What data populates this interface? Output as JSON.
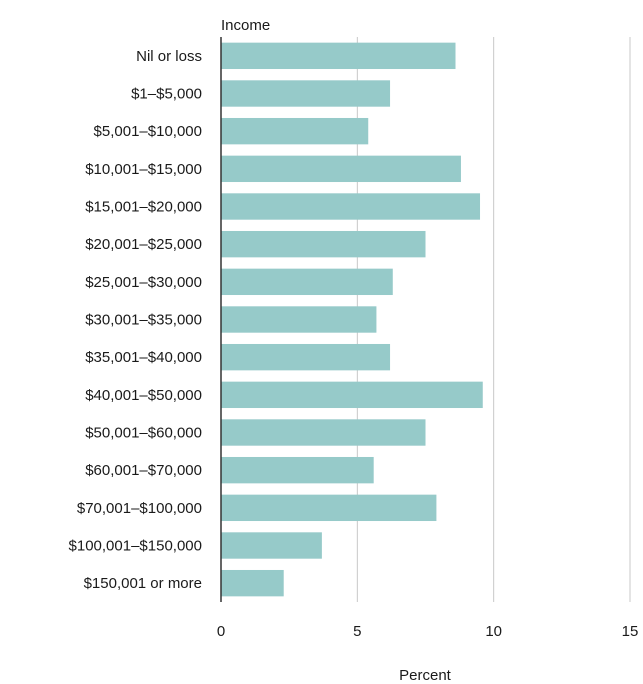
{
  "chart_data": {
    "type": "bar",
    "orientation": "horizontal",
    "ylabel": "Income",
    "xlabel": "Percent",
    "categories": [
      "Nil or loss",
      "$1–$5,000",
      "$5,001–$10,000",
      "$10,001–$15,000",
      "$15,001–$20,000",
      "$20,001–$25,000",
      "$25,001–$30,000",
      "$30,001–$35,000",
      "$35,001–$40,000",
      "$40,001–$50,000",
      "$50,001–$60,000",
      "$60,001–$70,000",
      "$70,001–$100,000",
      "$100,001–$150,000",
      "$150,001 or more"
    ],
    "values": [
      8.6,
      6.2,
      5.4,
      8.8,
      9.5,
      7.5,
      6.3,
      5.7,
      6.2,
      9.6,
      7.5,
      5.6,
      7.9,
      3.7,
      2.3
    ],
    "xlim": [
      0,
      15
    ],
    "xticks": [
      0,
      5,
      10,
      15
    ],
    "grid": "vertical",
    "legend": "none",
    "bar_color": "#96cac9"
  }
}
